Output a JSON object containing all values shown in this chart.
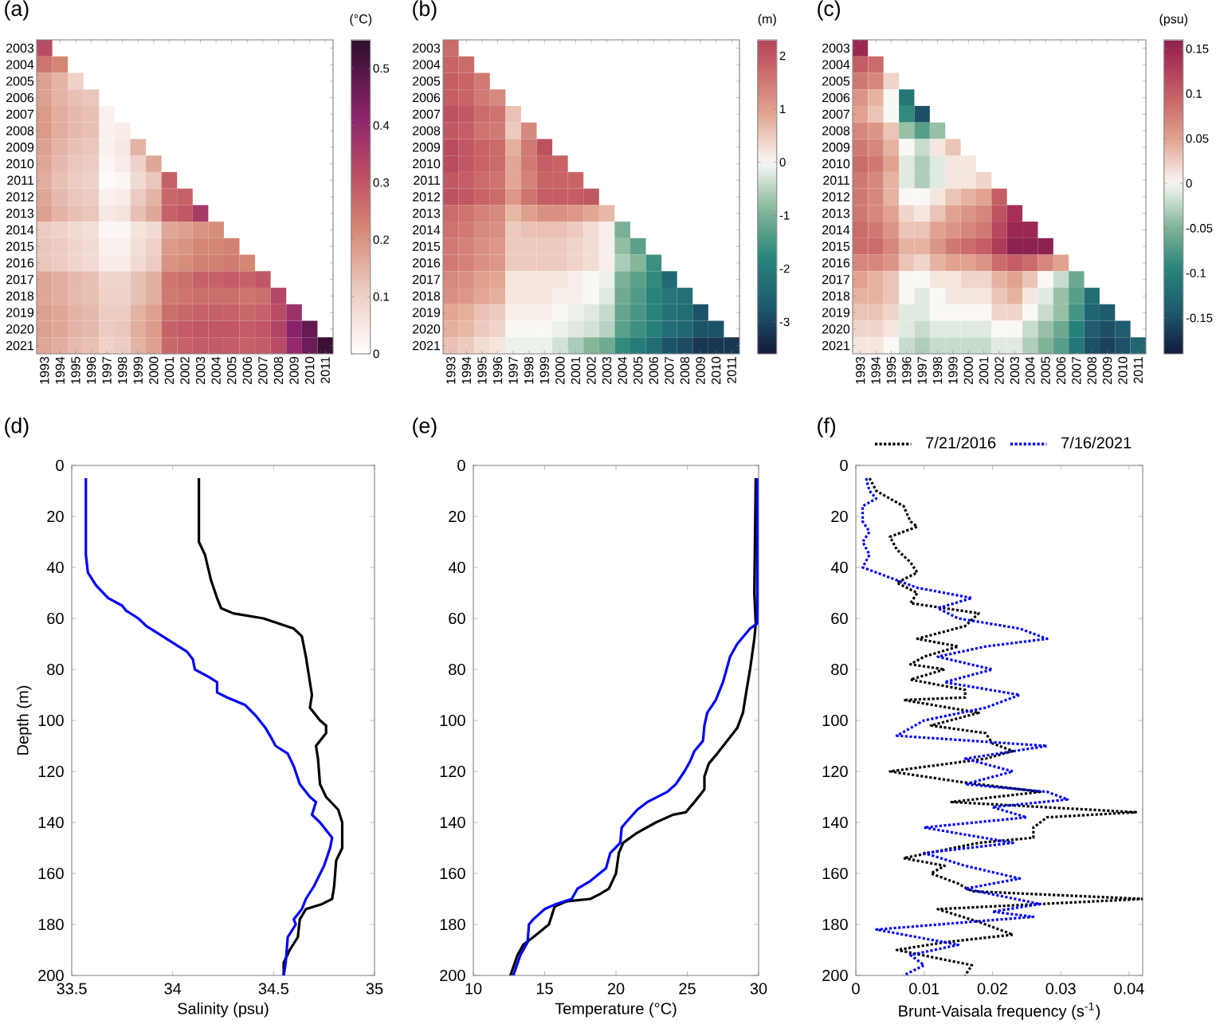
{
  "chart_data": [
    {
      "type": "heatmap",
      "title": "(a)",
      "clabel": "(°C)",
      "categories": [
        "1993",
        "1994",
        "1995",
        "1996",
        "1997",
        "1998",
        "1999",
        "2000",
        "2001",
        "2002",
        "2003",
        "2004",
        "2005",
        "2006",
        "2007",
        "2008",
        "2009",
        "2010",
        "2011"
      ],
      "y_categories": [
        "2003",
        "2004",
        "2005",
        "2006",
        "2007",
        "2008",
        "2009",
        "2010",
        "2011",
        "2012",
        "2013",
        "2014",
        "2015",
        "2016",
        "2017",
        "2018",
        "2019",
        "2020",
        "2021"
      ],
      "cells": [
        [
          0.32,
          null,
          null,
          null,
          null,
          null,
          null,
          null,
          null,
          null,
          null,
          null,
          null,
          null,
          null,
          null,
          null,
          null,
          null
        ],
        [
          0.25,
          0.22,
          null,
          null,
          null,
          null,
          null,
          null,
          null,
          null,
          null,
          null,
          null,
          null,
          null,
          null,
          null,
          null,
          null
        ],
        [
          0.18,
          0.15,
          0.1,
          null,
          null,
          null,
          null,
          null,
          null,
          null,
          null,
          null,
          null,
          null,
          null,
          null,
          null,
          null,
          null
        ],
        [
          0.18,
          0.15,
          0.13,
          0.12,
          null,
          null,
          null,
          null,
          null,
          null,
          null,
          null,
          null,
          null,
          null,
          null,
          null,
          null,
          null
        ],
        [
          0.19,
          0.16,
          0.14,
          0.13,
          0.03,
          null,
          null,
          null,
          null,
          null,
          null,
          null,
          null,
          null,
          null,
          null,
          null,
          null,
          null
        ],
        [
          0.19,
          0.16,
          0.14,
          0.13,
          0.03,
          0.04,
          null,
          null,
          null,
          null,
          null,
          null,
          null,
          null,
          null,
          null,
          null,
          null,
          null
        ],
        [
          0.18,
          0.15,
          0.13,
          0.12,
          0.03,
          0.05,
          0.15,
          null,
          null,
          null,
          null,
          null,
          null,
          null,
          null,
          null,
          null,
          null,
          null
        ],
        [
          0.17,
          0.14,
          0.12,
          0.11,
          0.02,
          0.04,
          0.1,
          0.17,
          null,
          null,
          null,
          null,
          null,
          null,
          null,
          null,
          null,
          null,
          null
        ],
        [
          0.16,
          0.13,
          0.11,
          0.1,
          0.01,
          0.02,
          0.08,
          0.12,
          0.28,
          null,
          null,
          null,
          null,
          null,
          null,
          null,
          null,
          null,
          null
        ],
        [
          0.17,
          0.14,
          0.12,
          0.11,
          0.03,
          0.04,
          0.11,
          0.15,
          0.27,
          0.28,
          null,
          null,
          null,
          null,
          null,
          null,
          null,
          null,
          null
        ],
        [
          0.18,
          0.15,
          0.13,
          0.12,
          0.05,
          0.06,
          0.13,
          0.17,
          0.28,
          0.3,
          0.36,
          null,
          null,
          null,
          null,
          null,
          null,
          null,
          null
        ],
        [
          0.11,
          0.1,
          0.08,
          0.07,
          0.02,
          0.02,
          0.06,
          0.08,
          0.17,
          0.18,
          0.2,
          0.21,
          null,
          null,
          null,
          null,
          null,
          null,
          null
        ],
        [
          0.12,
          0.11,
          0.09,
          0.08,
          0.03,
          0.03,
          0.07,
          0.1,
          0.19,
          0.2,
          0.22,
          0.22,
          0.23,
          null,
          null,
          null,
          null,
          null,
          null
        ],
        [
          0.12,
          0.11,
          0.09,
          0.08,
          0.04,
          0.04,
          0.08,
          0.11,
          0.2,
          0.21,
          0.23,
          0.23,
          0.24,
          0.22,
          null,
          null,
          null,
          null,
          null
        ],
        [
          0.17,
          0.16,
          0.14,
          0.13,
          0.09,
          0.09,
          0.13,
          0.16,
          0.25,
          0.26,
          0.28,
          0.28,
          0.29,
          0.28,
          0.3,
          null,
          null,
          null,
          null
        ],
        [
          0.17,
          0.16,
          0.14,
          0.13,
          0.1,
          0.1,
          0.13,
          0.16,
          0.24,
          0.25,
          0.26,
          0.26,
          0.26,
          0.25,
          0.26,
          0.33,
          null,
          null,
          null
        ],
        [
          0.18,
          0.17,
          0.15,
          0.14,
          0.11,
          0.11,
          0.15,
          0.18,
          0.26,
          0.27,
          0.28,
          0.28,
          0.28,
          0.27,
          0.28,
          0.32,
          0.38,
          null,
          null
        ],
        [
          0.18,
          0.17,
          0.15,
          0.14,
          0.11,
          0.12,
          0.16,
          0.19,
          0.28,
          0.29,
          0.3,
          0.3,
          0.3,
          0.29,
          0.3,
          0.34,
          0.42,
          0.47,
          null
        ],
        [
          0.17,
          0.16,
          0.14,
          0.13,
          0.1,
          0.11,
          0.15,
          0.18,
          0.27,
          0.28,
          0.29,
          0.29,
          0.29,
          0.28,
          0.29,
          0.32,
          0.4,
          0.46,
          0.53
        ]
      ],
      "clim": [
        0,
        0.55
      ],
      "cticks": [
        0,
        0.1,
        0.2,
        0.3,
        0.4,
        0.5
      ]
    },
    {
      "type": "heatmap",
      "title": "(b)",
      "clabel": "(m)",
      "categories": [
        "1993",
        "1994",
        "1995",
        "1996",
        "1997",
        "1998",
        "1999",
        "2000",
        "2001",
        "2002",
        "2003",
        "2004",
        "2005",
        "2006",
        "2007",
        "2008",
        "2009",
        "2010",
        "2011"
      ],
      "y_categories": [
        "2003",
        "2004",
        "2005",
        "2006",
        "2007",
        "2008",
        "2009",
        "2010",
        "2011",
        "2012",
        "2013",
        "2014",
        "2015",
        "2016",
        "2017",
        "2018",
        "2019",
        "2020",
        "2021"
      ],
      "cells": [
        [
          1.7,
          null,
          null,
          null,
          null,
          null,
          null,
          null,
          null,
          null,
          null,
          null,
          null,
          null,
          null,
          null,
          null,
          null,
          null
        ],
        [
          1.8,
          1.7,
          null,
          null,
          null,
          null,
          null,
          null,
          null,
          null,
          null,
          null,
          null,
          null,
          null,
          null,
          null,
          null,
          null
        ],
        [
          1.9,
          1.8,
          1.5,
          null,
          null,
          null,
          null,
          null,
          null,
          null,
          null,
          null,
          null,
          null,
          null,
          null,
          null,
          null,
          null
        ],
        [
          1.9,
          1.8,
          1.5,
          1.3,
          null,
          null,
          null,
          null,
          null,
          null,
          null,
          null,
          null,
          null,
          null,
          null,
          null,
          null,
          null
        ],
        [
          2.1,
          2.0,
          1.7,
          1.6,
          0.6,
          null,
          null,
          null,
          null,
          null,
          null,
          null,
          null,
          null,
          null,
          null,
          null,
          null,
          null
        ],
        [
          2.0,
          1.9,
          1.6,
          1.5,
          0.5,
          1.3,
          null,
          null,
          null,
          null,
          null,
          null,
          null,
          null,
          null,
          null,
          null,
          null,
          null
        ],
        [
          2.2,
          2.0,
          1.8,
          1.7,
          0.8,
          1.5,
          2.1,
          null,
          null,
          null,
          null,
          null,
          null,
          null,
          null,
          null,
          null,
          null,
          null
        ],
        [
          2.2,
          2.0,
          1.8,
          1.7,
          0.9,
          1.5,
          1.9,
          1.8,
          null,
          null,
          null,
          null,
          null,
          null,
          null,
          null,
          null,
          null,
          null
        ],
        [
          2.0,
          1.9,
          1.7,
          1.6,
          0.9,
          1.4,
          1.8,
          1.8,
          1.8,
          null,
          null,
          null,
          null,
          null,
          null,
          null,
          null,
          null,
          null
        ],
        [
          2.1,
          2.0,
          1.8,
          1.7,
          1.1,
          1.6,
          1.9,
          1.9,
          1.9,
          2.0,
          null,
          null,
          null,
          null,
          null,
          null,
          null,
          null,
          null
        ],
        [
          1.7,
          1.6,
          1.4,
          1.3,
          0.7,
          1.0,
          1.2,
          1.2,
          1.1,
          0.9,
          0.7,
          null,
          null,
          null,
          null,
          null,
          null,
          null,
          null
        ],
        [
          1.6,
          1.5,
          1.3,
          1.2,
          0.5,
          0.6,
          0.6,
          0.6,
          0.5,
          0.3,
          0.1,
          -1.0,
          null,
          null,
          null,
          null,
          null,
          null,
          null
        ],
        [
          1.5,
          1.4,
          1.2,
          1.1,
          0.5,
          0.5,
          0.5,
          0.5,
          0.4,
          0.3,
          0.1,
          -0.8,
          -1.3,
          null,
          null,
          null,
          null,
          null,
          null
        ],
        [
          1.5,
          1.4,
          1.2,
          1.1,
          0.5,
          0.5,
          0.5,
          0.5,
          0.4,
          0.3,
          0.1,
          -0.6,
          -0.9,
          -1.6,
          null,
          null,
          null,
          null,
          null
        ],
        [
          1.3,
          1.2,
          1.0,
          0.9,
          0.2,
          0.2,
          0.2,
          0.2,
          0.1,
          0,
          -0.1,
          -1.0,
          -1.3,
          -1.7,
          -2.4,
          null,
          null,
          null,
          null
        ],
        [
          1.2,
          1.1,
          0.9,
          0.8,
          0.2,
          0.2,
          0.2,
          0.1,
          0.1,
          0,
          -0.2,
          -1.1,
          -1.4,
          -1.8,
          -2.1,
          -2.2,
          null,
          null,
          null
        ],
        [
          0.9,
          0.8,
          0.6,
          0.5,
          0.1,
          0.1,
          0.1,
          0,
          -0.1,
          -0.2,
          -0.4,
          -1.2,
          -1.5,
          -1.8,
          -2.2,
          -2.3,
          -2.8,
          null,
          null
        ],
        [
          0.8,
          0.7,
          0.5,
          0.4,
          0,
          0,
          0,
          -0.1,
          -0.2,
          -0.3,
          -0.5,
          -1.3,
          -1.6,
          -1.9,
          -2.3,
          -2.4,
          -2.8,
          -2.8,
          null
        ],
        [
          0.6,
          0.5,
          0.3,
          0.2,
          -0.1,
          -0.1,
          -0.1,
          -0.3,
          -0.6,
          -0.9,
          -1.1,
          -1.7,
          -2.0,
          -2.3,
          -2.8,
          -2.9,
          -3.2,
          -3.2,
          -3.2
        ]
      ],
      "clim": [
        -3.6,
        2.3
      ],
      "cticks": [
        -3,
        -2,
        -1,
        0,
        1,
        2
      ]
    },
    {
      "type": "heatmap",
      "title": "(c)",
      "clabel": "(psu)",
      "categories": [
        "1993",
        "1994",
        "1995",
        "1996",
        "1997",
        "1998",
        "1999",
        "2000",
        "2001",
        "2002",
        "2003",
        "2004",
        "2005",
        "2006",
        "2007",
        "2008",
        "2009",
        "2010",
        "2011"
      ],
      "y_categories": [
        "2003",
        "2004",
        "2005",
        "2006",
        "2007",
        "2008",
        "2009",
        "2010",
        "2011",
        "2012",
        "2013",
        "2014",
        "2015",
        "2016",
        "2017",
        "2018",
        "2019",
        "2020",
        "2021"
      ],
      "cells": [
        [
          0.15,
          null,
          null,
          null,
          null,
          null,
          null,
          null,
          null,
          null,
          null,
          null,
          null,
          null,
          null,
          null,
          null,
          null,
          null
        ],
        [
          0.1,
          0.09,
          null,
          null,
          null,
          null,
          null,
          null,
          null,
          null,
          null,
          null,
          null,
          null,
          null,
          null,
          null,
          null,
          null
        ],
        [
          0.08,
          0.07,
          0.02,
          null,
          null,
          null,
          null,
          null,
          null,
          null,
          null,
          null,
          null,
          null,
          null,
          null,
          null,
          null,
          null
        ],
        [
          0.06,
          0.04,
          0,
          -0.11,
          null,
          null,
          null,
          null,
          null,
          null,
          null,
          null,
          null,
          null,
          null,
          null,
          null,
          null,
          null
        ],
        [
          0.05,
          0.03,
          0,
          -0.09,
          -0.15,
          null,
          null,
          null,
          null,
          null,
          null,
          null,
          null,
          null,
          null,
          null,
          null,
          null,
          null
        ],
        [
          0.07,
          0.06,
          0.03,
          -0.04,
          -0.07,
          -0.04,
          null,
          null,
          null,
          null,
          null,
          null,
          null,
          null,
          null,
          null,
          null,
          null,
          null
        ],
        [
          0.08,
          0.07,
          0.04,
          0,
          -0.02,
          0.01,
          0.03,
          null,
          null,
          null,
          null,
          null,
          null,
          null,
          null,
          null,
          null,
          null,
          null
        ],
        [
          0.09,
          0.08,
          0.05,
          -0.01,
          -0.03,
          -0.01,
          0.01,
          0.01,
          null,
          null,
          null,
          null,
          null,
          null,
          null,
          null,
          null,
          null,
          null
        ],
        [
          0.08,
          0.07,
          0.04,
          -0.01,
          -0.03,
          -0.01,
          0.01,
          0.01,
          0.02,
          null,
          null,
          null,
          null,
          null,
          null,
          null,
          null,
          null,
          null
        ],
        [
          0.08,
          0.07,
          0.04,
          0,
          0,
          0.01,
          0.03,
          0.04,
          0.05,
          0.1,
          null,
          null,
          null,
          null,
          null,
          null,
          null,
          null,
          null
        ],
        [
          0.08,
          0.07,
          0.05,
          0.02,
          0.01,
          0.03,
          0.05,
          0.06,
          0.07,
          0.11,
          0.14,
          null,
          null,
          null,
          null,
          null,
          null,
          null,
          null
        ],
        [
          0.09,
          0.08,
          0.06,
          0.03,
          0.03,
          0.05,
          0.06,
          0.07,
          0.08,
          0.12,
          0.15,
          0.15,
          null,
          null,
          null,
          null,
          null,
          null,
          null
        ],
        [
          0.09,
          0.09,
          0.07,
          0.04,
          0.04,
          0.06,
          0.08,
          0.09,
          0.1,
          0.13,
          0.16,
          0.16,
          0.16,
          null,
          null,
          null,
          null,
          null,
          null
        ],
        [
          0.07,
          0.07,
          0.06,
          0.03,
          0.02,
          0.04,
          0.05,
          0.05,
          0.06,
          0.09,
          0.1,
          0.09,
          0.07,
          0.05,
          null,
          null,
          null,
          null,
          null
        ],
        [
          0.05,
          0.04,
          0.03,
          0,
          0,
          0.01,
          0.01,
          0.02,
          0.02,
          0.04,
          0.05,
          0.03,
          0,
          -0.02,
          -0.06,
          null,
          null,
          null,
          null
        ],
        [
          0.04,
          0.04,
          0.03,
          0,
          -0.01,
          0,
          0.01,
          0.01,
          0.01,
          0.03,
          0.04,
          0.01,
          -0.01,
          -0.04,
          -0.07,
          -0.12,
          null,
          null,
          null
        ],
        [
          0.03,
          0.03,
          0.02,
          -0.01,
          -0.01,
          0,
          0,
          0,
          0,
          0.02,
          0.02,
          0,
          -0.02,
          -0.04,
          -0.08,
          -0.13,
          -0.14,
          null,
          null
        ],
        [
          0.02,
          0.02,
          0.01,
          -0.01,
          -0.02,
          -0.01,
          -0.01,
          -0.01,
          -0.01,
          0,
          0,
          -0.02,
          -0.04,
          -0.06,
          -0.1,
          -0.14,
          -0.15,
          -0.14,
          null
        ],
        [
          0.01,
          0.01,
          0,
          -0.02,
          -0.03,
          -0.02,
          -0.02,
          -0.02,
          -0.02,
          -0.01,
          -0.01,
          -0.03,
          -0.05,
          -0.07,
          -0.11,
          -0.15,
          -0.16,
          -0.15,
          -0.13
        ]
      ],
      "clim": [
        -0.19,
        0.16
      ],
      "cticks": [
        -0.15,
        -0.1,
        -0.05,
        0,
        0.05,
        0.1,
        0.15
      ]
    },
    {
      "type": "line",
      "title": "(d)",
      "xlabel": "Salinity (psu)",
      "ylabel": "Depth (m)",
      "xlim": [
        33.5,
        35
      ],
      "xticks": [
        33.5,
        34,
        34.5,
        35
      ],
      "ylim": [
        200,
        0
      ],
      "yticks": [
        0,
        20,
        40,
        60,
        80,
        100,
        120,
        140,
        160,
        180,
        200
      ],
      "series": [
        {
          "color": "#000000",
          "x": [
            34.13,
            34.13,
            34.16,
            34.19,
            34.22,
            34.24,
            34.3,
            34.45,
            34.6,
            34.64,
            34.66,
            34.68,
            34.69,
            34.68,
            34.73,
            34.76,
            34.76,
            34.71,
            34.72,
            34.73,
            34.76,
            34.82,
            34.84,
            34.84,
            34.81,
            34.8,
            34.79,
            34.74,
            34.66,
            34.63,
            34.62,
            34.58,
            34.55,
            34.55
          ],
          "values": [
            5,
            30,
            35,
            45,
            52,
            56,
            58,
            60,
            64,
            67,
            75,
            85,
            90,
            95,
            100,
            102,
            105,
            110,
            115,
            125,
            130,
            135,
            140,
            150,
            155,
            165,
            170,
            172,
            174,
            178,
            185,
            190,
            195,
            200
          ]
        },
        {
          "color": "#0000ff",
          "x": [
            33.57,
            33.57,
            33.58,
            33.62,
            33.68,
            33.75,
            33.77,
            33.83,
            33.87,
            33.97,
            34.07,
            34.1,
            34.11,
            34.18,
            34.22,
            34.22,
            34.27,
            34.36,
            34.41,
            34.46,
            34.49,
            34.51,
            34.57,
            34.6,
            34.63,
            34.68,
            34.71,
            34.69,
            34.73,
            34.79,
            34.78,
            34.75,
            34.7,
            34.66,
            34.64,
            34.6,
            34.61,
            34.57,
            34.56,
            34.55
          ],
          "values": [
            5,
            35,
            42,
            47,
            52,
            55,
            57,
            60,
            63,
            68,
            73,
            76,
            80,
            83,
            85,
            89,
            91,
            94,
            98,
            103,
            107,
            110,
            113,
            118,
            125,
            130,
            132,
            137,
            140,
            146,
            150,
            157,
            165,
            170,
            174,
            178,
            180,
            185,
            195,
            200
          ]
        }
      ]
    },
    {
      "type": "line",
      "title": "(e)",
      "xlabel": "Temperature (°C)",
      "xlim": [
        10,
        30
      ],
      "xticks": [
        10,
        15,
        20,
        25,
        30
      ],
      "ylim": [
        200,
        0
      ],
      "yticks": [
        0,
        20,
        40,
        60,
        80,
        100,
        120,
        140,
        160,
        180,
        200
      ],
      "series": [
        {
          "color": "#000000",
          "x": [
            29.8,
            29.7,
            29.8,
            29.7,
            29.4,
            29.1,
            28.9,
            28.5,
            27.8,
            27.1,
            26.5,
            26.2,
            26.2,
            25.5,
            24.9,
            24.0,
            22.8,
            21.5,
            20.5,
            20.2,
            20.0,
            19.5,
            18.9,
            18.2,
            16.5,
            15.7,
            15.3,
            14.2,
            13.5,
            13.1,
            12.6
          ],
          "values": [
            5,
            50,
            62,
            68,
            80,
            90,
            97,
            103,
            108,
            113,
            117,
            122,
            127,
            132,
            136,
            137,
            140,
            144,
            148,
            152,
            160,
            166,
            168,
            170,
            171,
            173,
            180,
            185,
            188,
            192,
            200
          ]
        },
        {
          "color": "#0000ff",
          "x": [
            29.9,
            29.9,
            29.4,
            28.5,
            28.0,
            27.5,
            27.0,
            26.4,
            26.2,
            26.1,
            25.5,
            25.2,
            24.8,
            24.2,
            23.6,
            22.2,
            21.5,
            20.7,
            20.4,
            20.3,
            19.6,
            19.3,
            18.2,
            17.3,
            16.9,
            15.8,
            15.0,
            14.2,
            13.9,
            13.8,
            13.3,
            12.8
          ],
          "values": [
            5,
            62,
            64,
            70,
            75,
            85,
            92,
            97,
            102,
            108,
            112,
            116,
            120,
            125,
            128,
            132,
            135,
            140,
            142,
            148,
            152,
            158,
            163,
            166,
            170,
            172,
            174,
            178,
            180,
            187,
            192,
            200
          ]
        }
      ]
    },
    {
      "type": "line",
      "title": "(f)",
      "xlabel": "Brunt-Vaisala frequency (s$^{-1}$)",
      "legend": "top right",
      "line_style": "dotted",
      "xlim": [
        0,
        0.042
      ],
      "xticks": [
        0,
        0.01,
        0.02,
        0.03,
        0.04
      ],
      "ylim": [
        200,
        0
      ],
      "yticks": [
        0,
        20,
        40,
        60,
        80,
        100,
        120,
        140,
        160,
        180,
        200
      ],
      "series": [
        {
          "name": "7/21/2016",
          "color": "#000000",
          "x": [
            0.002,
            0.003,
            0.007,
            0.008,
            0.009,
            0.005,
            0.006,
            0.008,
            0.009,
            0.006,
            0.009,
            0.008,
            0.018,
            0.016,
            0.009,
            0.015,
            0.01,
            0.008,
            0.013,
            0.008,
            0.016,
            0.016,
            0.007,
            0.018,
            0.011,
            0.019,
            0.02,
            0.023,
            0.019,
            0.005,
            0.015,
            0.027,
            0.014,
            0.041,
            0.028,
            0.026,
            0.026,
            0.018,
            0.007,
            0.013,
            0.011,
            0.015,
            0.017,
            0.042,
            0.012,
            0.018,
            0.023,
            0.013,
            0.006,
            0.017,
            0.016
          ],
          "values": [
            5,
            10,
            16,
            22,
            24,
            28,
            33,
            38,
            42,
            46,
            50,
            54,
            58,
            63,
            68,
            71,
            75,
            78,
            80,
            84,
            88,
            91,
            92,
            97,
            102,
            105,
            109,
            112,
            115,
            120,
            124,
            128,
            132,
            136,
            138,
            142,
            146,
            148,
            154,
            157,
            160,
            164,
            167,
            170,
            174,
            179,
            184,
            187,
            190,
            196,
            200
          ]
        },
        {
          "name": "7/16/2021",
          "color": "#0000ff",
          "x": [
            0.0015,
            0.002,
            0.003,
            0.001,
            0.001,
            0.002,
            0.001,
            0.002,
            0.001,
            0.009,
            0.017,
            0.012,
            0.015,
            0.024,
            0.028,
            0.019,
            0.012,
            0.02,
            0.013,
            0.024,
            0.019,
            0.01,
            0.006,
            0.028,
            0.016,
            0.023,
            0.016,
            0.028,
            0.031,
            0.02,
            0.025,
            0.01,
            0.023,
            0.01,
            0.016,
            0.024,
            0.016,
            0.027,
            0.02,
            0.026,
            0.003,
            0.015,
            0.008,
            0.01,
            0.007
          ],
          "values": [
            5,
            10,
            13,
            16,
            22,
            26,
            30,
            35,
            40,
            48,
            52,
            56,
            60,
            64,
            68,
            71,
            75,
            80,
            85,
            90,
            95,
            100,
            106,
            110,
            115,
            120,
            125,
            128,
            131,
            134,
            138,
            142,
            148,
            152,
            157,
            162,
            166,
            172,
            175,
            177,
            182,
            188,
            192,
            196,
            200
          ]
        }
      ]
    }
  ]
}
